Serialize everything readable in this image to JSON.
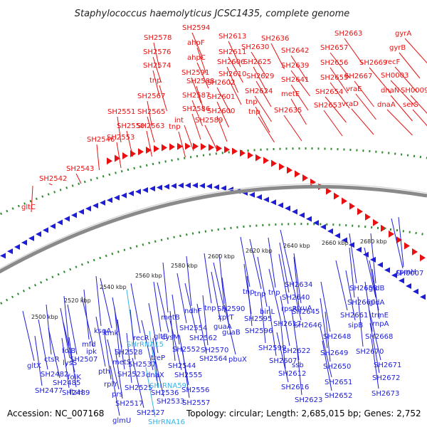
{
  "title": "Staphylococcus haemolyticus JCSC1435, complete genome",
  "footer": {
    "accession": "Accession: NC_007168",
    "summary": "Topology: circular; Length: 2,685,015 bp; Genes: 2,752"
  },
  "colors": {
    "forward_gene": "#e81010",
    "reverse_gene": "#1d1dd9",
    "rna_gene": "#3bb4e6",
    "backbone": "#8a8a8a",
    "dotted_ring": "#2e8b2e",
    "tick_label": "#222222"
  },
  "scale_labels": [
    "2500 kbp",
    "2520 kbp",
    "2540 kbp",
    "2560 kbp",
    "2580 kbp",
    "2600 kbp",
    "2620 kbp",
    "2640 kbp",
    "2660 kbp",
    "2680 kbp"
  ],
  "labels_top": [
    {
      "t": "gltC"
    },
    {
      "t": "SH2542"
    },
    {
      "t": "SH2543"
    },
    {
      "t": "SH2546"
    },
    {
      "t": "SH2553"
    },
    {
      "t": "SH2550"
    },
    {
      "t": "SH2551"
    },
    {
      "t": "SH2563"
    },
    {
      "t": "SH2565"
    },
    {
      "t": "SH2567"
    },
    {
      "t": "SH2574"
    },
    {
      "t": "SH2576"
    },
    {
      "t": "SH2578"
    },
    {
      "t": "tnp"
    },
    {
      "t": "int"
    },
    {
      "t": "tnp"
    },
    {
      "t": "SH2586"
    },
    {
      "t": "SH2587"
    },
    {
      "t": "SH2588"
    },
    {
      "t": "SH2591"
    },
    {
      "t": "ahpC"
    },
    {
      "t": "ahpF"
    },
    {
      "t": "SH2594"
    },
    {
      "t": "SH2589"
    },
    {
      "t": "SH2600"
    },
    {
      "t": "SH2601"
    },
    {
      "t": "SH2602"
    },
    {
      "t": "SH2606"
    },
    {
      "t": "SH2610"
    },
    {
      "t": "SH2611"
    },
    {
      "t": "SH2613"
    },
    {
      "t": "SH2625"
    },
    {
      "t": "SH2630"
    },
    {
      "t": "SH2636"
    },
    {
      "t": "SH2629"
    },
    {
      "t": "SH2624"
    },
    {
      "t": "tnp"
    },
    {
      "t": "tnp"
    },
    {
      "t": "SH2635"
    },
    {
      "t": "metE"
    },
    {
      "t": "SH2641"
    },
    {
      "t": "SH2639"
    },
    {
      "t": "SH2642"
    },
    {
      "t": "SH2663"
    },
    {
      "t": "SH2657"
    },
    {
      "t": "SH2656"
    },
    {
      "t": "SH2655"
    },
    {
      "t": "SH2654"
    },
    {
      "t": "SH2653"
    },
    {
      "t": "vraE"
    },
    {
      "t": "vraD"
    },
    {
      "t": "SH2667"
    },
    {
      "t": "SH2669"
    },
    {
      "t": "gyrA"
    },
    {
      "t": "gyrB"
    },
    {
      "t": "recF"
    },
    {
      "t": "SH0003"
    },
    {
      "t": "dnaN"
    },
    {
      "t": "SH0009"
    },
    {
      "t": "dnaA"
    },
    {
      "t": "serS"
    }
  ],
  "labels_bottom": [
    {
      "t": "gltX"
    },
    {
      "t": "SH2482"
    },
    {
      "t": "SH2477"
    },
    {
      "t": "ctsR"
    },
    {
      "t": "SH2485"
    },
    {
      "t": "lysS"
    },
    {
      "t": "SH2489"
    },
    {
      "t": "folB"
    },
    {
      "t": "folK"
    },
    {
      "t": "SH2507"
    },
    {
      "t": "ftsH"
    },
    {
      "t": "mfd"
    },
    {
      "t": "ipk"
    },
    {
      "t": "pth"
    },
    {
      "t": "rplY"
    },
    {
      "t": "metS"
    },
    {
      "t": "prs"
    },
    {
      "t": "glmU"
    },
    {
      "t": "SH2517"
    },
    {
      "t": "ksgA"
    },
    {
      "t": "tmk"
    },
    {
      "t": "SH2528"
    },
    {
      "t": "SH2523"
    },
    {
      "t": "SH2525"
    },
    {
      "t": "SH2527"
    },
    {
      "t": "recR"
    },
    {
      "t": "SHrRNA15",
      "rna": true
    },
    {
      "t": "SH2537"
    },
    {
      "t": "dnaX"
    },
    {
      "t": "treP"
    },
    {
      "t": "SHrRNA59",
      "rna": true
    },
    {
      "t": "SH2536"
    },
    {
      "t": "SH2533"
    },
    {
      "t": "SHrRNA16",
      "rna": true
    },
    {
      "t": "gltB"
    },
    {
      "t": "metB"
    },
    {
      "t": "cysM"
    },
    {
      "t": "SH2554"
    },
    {
      "t": "SH2552"
    },
    {
      "t": "SH2544"
    },
    {
      "t": "SH2555"
    },
    {
      "t": "SH2556"
    },
    {
      "t": "SH2557"
    },
    {
      "t": "ndhF"
    },
    {
      "t": "SH2562"
    },
    {
      "t": "SH2564"
    },
    {
      "t": "tnp"
    },
    {
      "t": "SH2570"
    },
    {
      "t": "xprT"
    },
    {
      "t": "guaA"
    },
    {
      "t": "guaB"
    },
    {
      "t": "SH2590"
    },
    {
      "t": "pbuX"
    },
    {
      "t": "tnp"
    },
    {
      "t": "SH2595"
    },
    {
      "t": "SH2596"
    },
    {
      "t": "tnp"
    },
    {
      "t": "binL"
    },
    {
      "t": "tnp"
    },
    {
      "t": "SH2599"
    },
    {
      "t": "SH2617"
    },
    {
      "t": "rpsR"
    },
    {
      "t": "SH2607"
    },
    {
      "t": "SH2612"
    },
    {
      "t": "SH2616"
    },
    {
      "t": "SH2622"
    },
    {
      "t": "ssb"
    },
    {
      "t": "SH2623"
    },
    {
      "t": "SH2634"
    },
    {
      "t": "SH2640"
    },
    {
      "t": "uxuA"
    },
    {
      "t": "SH2645"
    },
    {
      "t": "SH2646"
    },
    {
      "t": "SH2648"
    },
    {
      "t": "SH2649"
    },
    {
      "t": "SH2650"
    },
    {
      "t": "SH2651"
    },
    {
      "t": "SH2652"
    },
    {
      "t": "SH2658"
    },
    {
      "t": "SH2660"
    },
    {
      "t": "SH2661"
    },
    {
      "t": "sipB"
    },
    {
      "t": "SH2668"
    },
    {
      "t": "SH2670"
    },
    {
      "t": "SH2671"
    },
    {
      "t": "SH2672"
    },
    {
      "t": "SH2673"
    },
    {
      "t": "gidB"
    },
    {
      "t": "gidA"
    },
    {
      "t": "trmE"
    },
    {
      "t": "rnpA"
    },
    {
      "t": "rpmH"
    },
    {
      "t": "SH0007"
    }
  ]
}
